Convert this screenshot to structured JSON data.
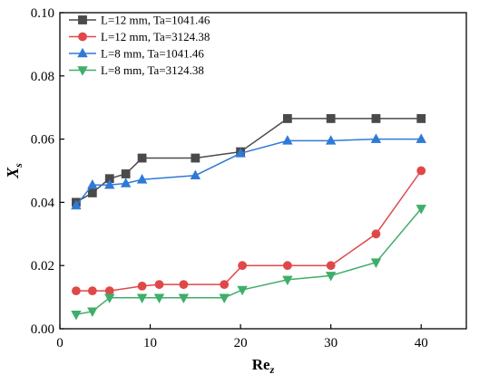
{
  "chart_data": {
    "type": "line",
    "xlabel": "Re",
    "xlabel_sub": "z",
    "ylabel": "X",
    "ylabel_sub": "s",
    "xlim": [
      0,
      45
    ],
    "ylim": [
      0.0,
      0.1
    ],
    "x_ticks": [
      0,
      10,
      20,
      30,
      40
    ],
    "x_tick_labels": [
      "0",
      "10",
      "20",
      "30",
      "40"
    ],
    "y_ticks": [
      0.0,
      0.02,
      0.04,
      0.06,
      0.08,
      0.1
    ],
    "y_tick_labels": [
      "0.00",
      "0.02",
      "0.04",
      "0.06",
      "0.08",
      "0.10"
    ],
    "grid": false,
    "legend_position": "top-left",
    "series": [
      {
        "name": "L=12 mm, Ta=1041.46",
        "color": "#4a4a4a",
        "marker": "square",
        "x": [
          1.8,
          3.6,
          5.5,
          7.3,
          9.1,
          15.0,
          20.0,
          25.2,
          30.0,
          35.0,
          40.0
        ],
        "y": [
          0.04,
          0.043,
          0.0475,
          0.049,
          0.054,
          0.054,
          0.056,
          0.0665,
          0.0665,
          0.0665,
          0.0665
        ]
      },
      {
        "name": "L=12 mm, Ta=3124.38",
        "color": "#e04848",
        "marker": "circle",
        "x": [
          1.8,
          3.6,
          5.5,
          9.1,
          11.0,
          13.7,
          18.2,
          20.2,
          25.2,
          30.0,
          35.0,
          40.0
        ],
        "y": [
          0.012,
          0.012,
          0.012,
          0.0135,
          0.014,
          0.014,
          0.014,
          0.02,
          0.02,
          0.02,
          0.03,
          0.05
        ]
      },
      {
        "name": "L=8 mm, Ta=1041.46",
        "color": "#2f7ad6",
        "marker": "triangle-up",
        "x": [
          1.8,
          3.6,
          5.5,
          7.3,
          9.1,
          15.0,
          20.0,
          25.2,
          30.0,
          35.0,
          40.0
        ],
        "y": [
          0.039,
          0.0455,
          0.0455,
          0.046,
          0.0472,
          0.0485,
          0.0555,
          0.0595,
          0.0595,
          0.06,
          0.06
        ]
      },
      {
        "name": "L=8 mm, Ta=3124.38",
        "color": "#3fae6a",
        "marker": "triangle-down",
        "x": [
          1.8,
          3.6,
          5.5,
          9.1,
          11.0,
          13.7,
          18.2,
          20.2,
          25.2,
          30.0,
          35.0,
          40.0
        ],
        "y": [
          0.0045,
          0.0055,
          0.0098,
          0.0098,
          0.0098,
          0.0098,
          0.0098,
          0.0123,
          0.0155,
          0.0168,
          0.021,
          0.038
        ]
      }
    ]
  }
}
